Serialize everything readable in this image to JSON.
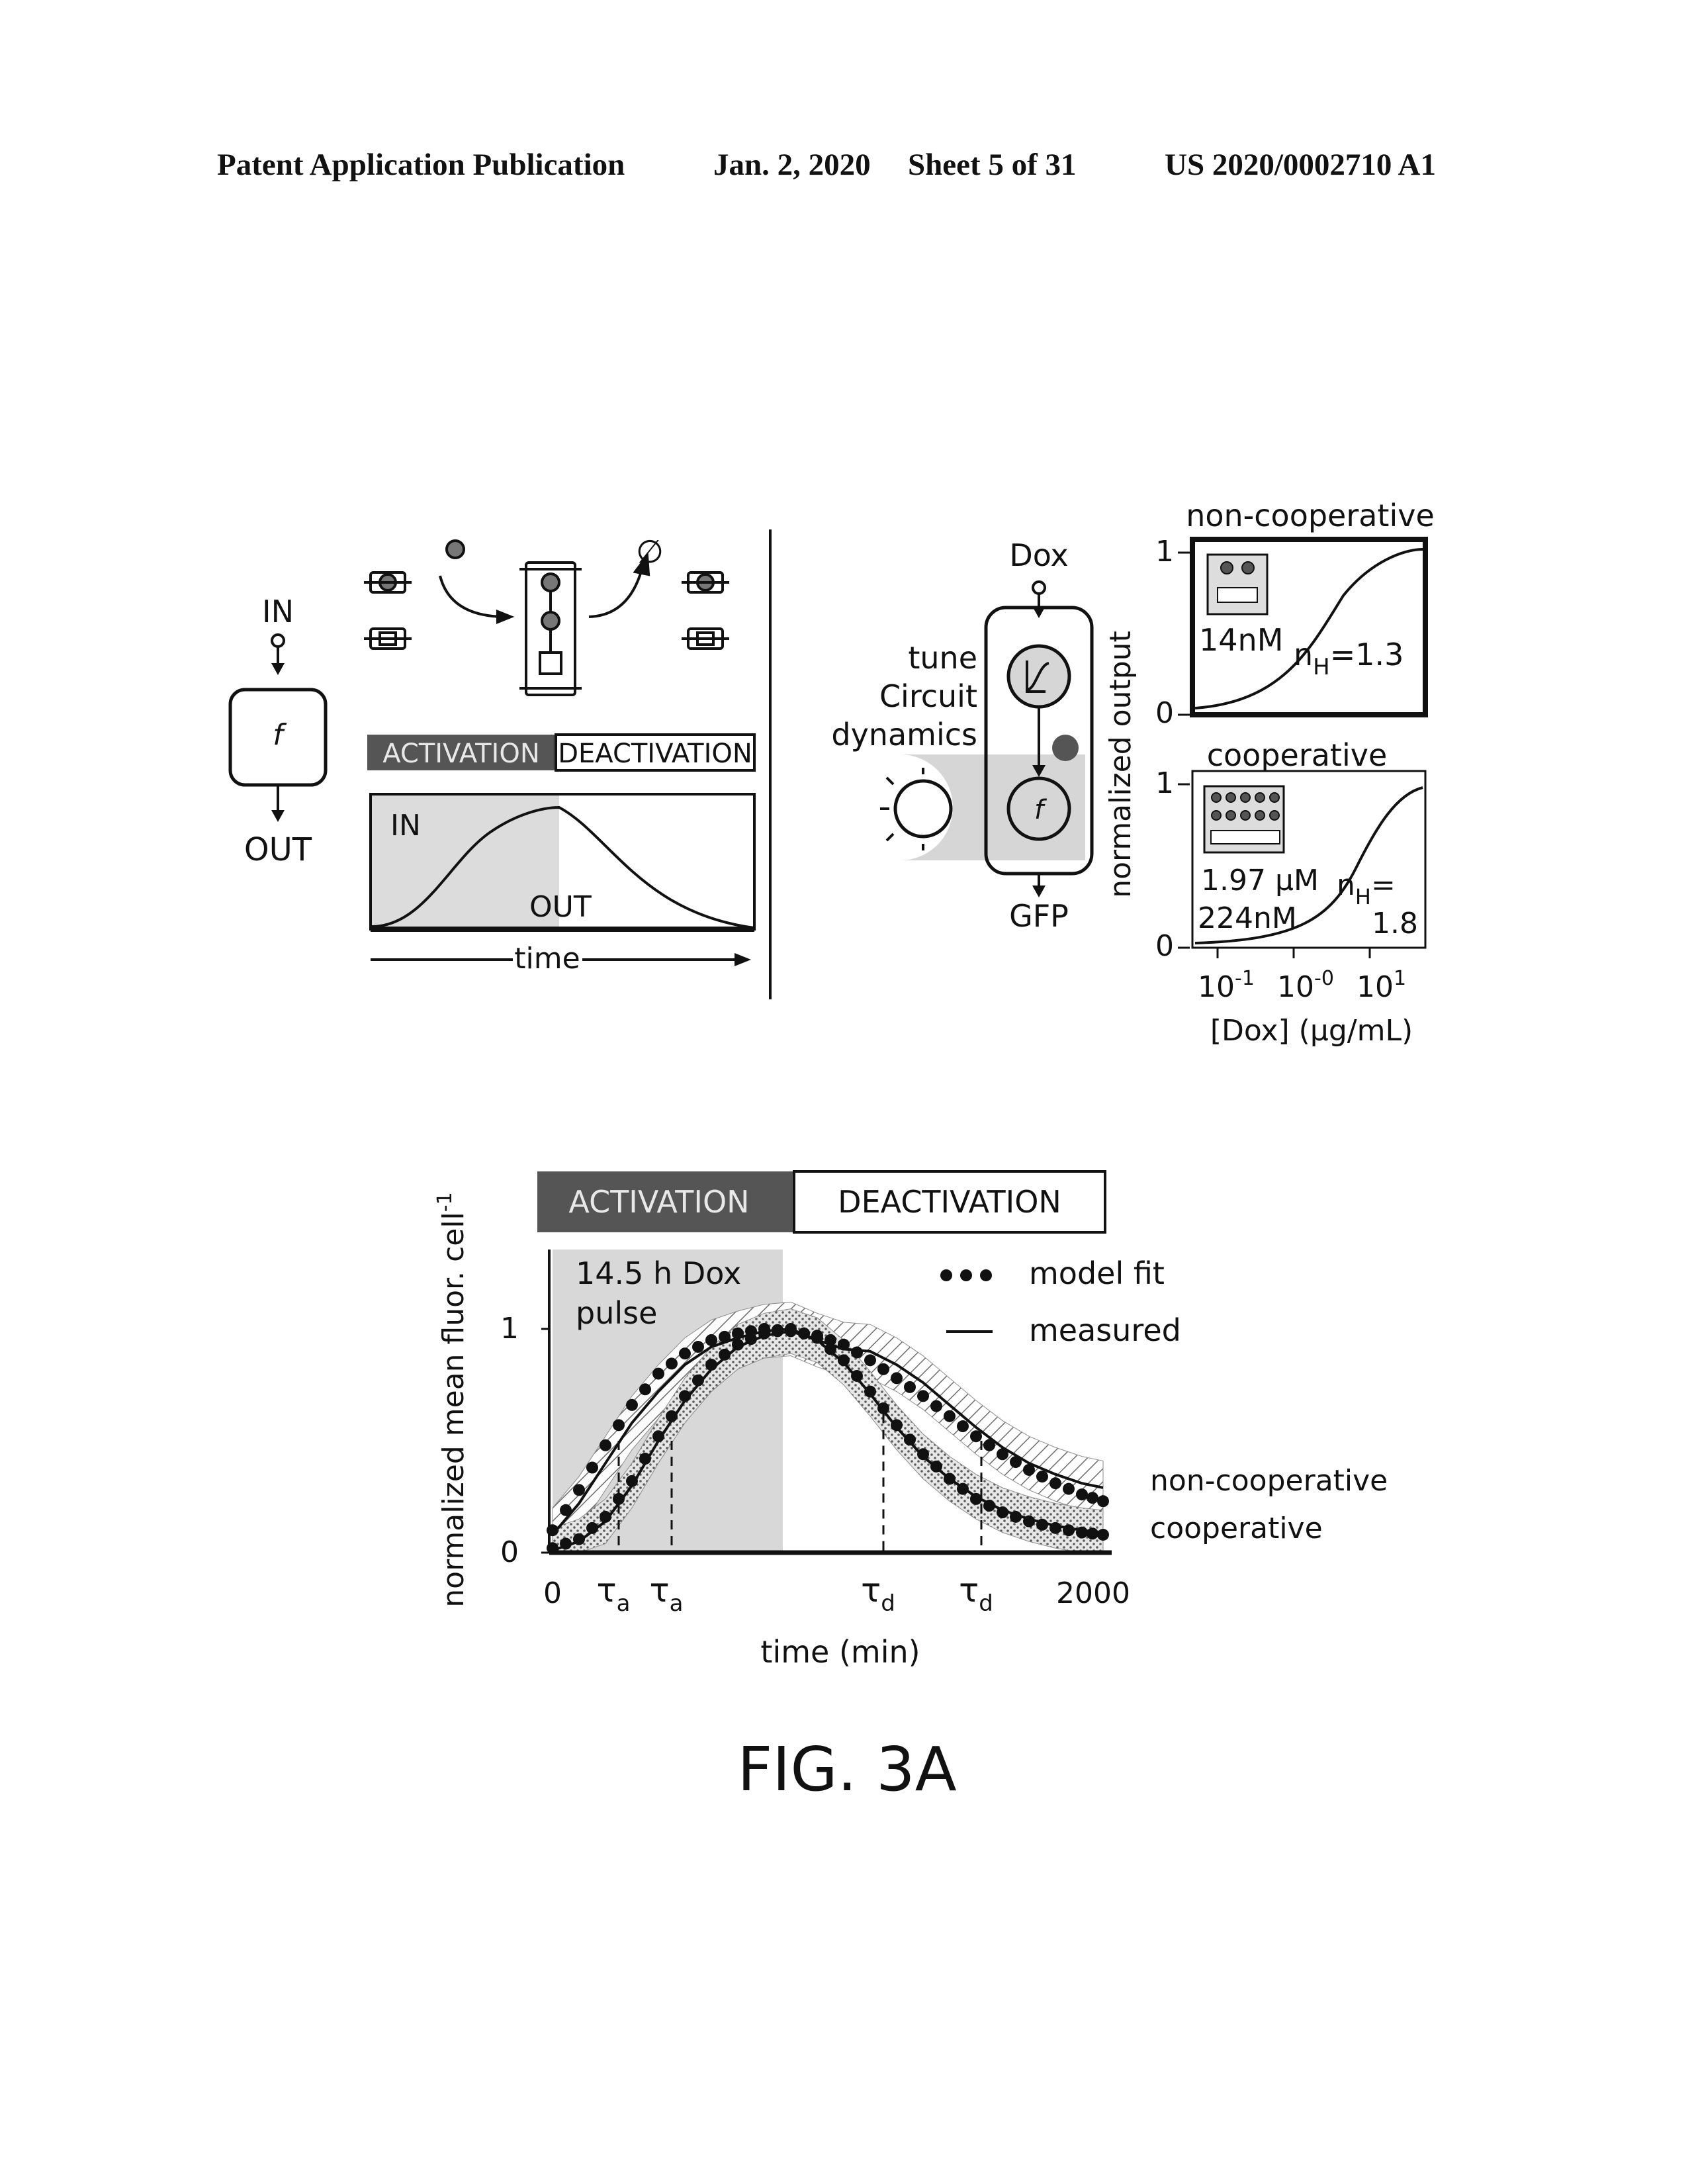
{
  "header": {
    "left": "Patent Application Publication",
    "date": "Jan. 2, 2020",
    "sheet": "Sheet 5 of 31",
    "number": "US 2020/0002710 A1"
  },
  "panel_a": {
    "in_label": "IN",
    "out_label": "OUT",
    "f_label": "f",
    "activation": "ACTIVATION",
    "deactivation": "DEACTIVATION",
    "curve_in": "IN",
    "curve_out": "OUT",
    "time": "time",
    "degrade_symbol": "∅"
  },
  "panel_b": {
    "dox": "Dox",
    "gfp": "GFP",
    "f_label": "f",
    "tune_lines": [
      "tune",
      "Circuit",
      "dynamics"
    ],
    "ylabel": "normalized output",
    "xlabel": "[Dox] (µg/mL)",
    "xticks": [
      {
        "base": "10",
        "exp": "-1"
      },
      {
        "base": "10",
        "exp": "-0"
      },
      {
        "base": "10",
        "exp": "1"
      }
    ],
    "top": {
      "title": "non-cooperative",
      "conc": "14nM",
      "nh_prefix": "n",
      "nh_sub": "H",
      "nh_value": "=1.3",
      "y_hi": "1",
      "y_lo": "0"
    },
    "bottom": {
      "title": "cooperative",
      "conc1": "1.97 µM",
      "conc2": "224nM",
      "nh_prefix": "n",
      "nh_sub": "H",
      "nh_value": "=",
      "nh_value2": "1.8",
      "y_hi": "1",
      "y_lo": "0"
    }
  },
  "panel_c": {
    "activation": "ACTIVATION",
    "deactivation": "DEACTIVATION",
    "pulse_line1": "14.5 h Dox",
    "pulse_line2": "pulse",
    "legend_fit": "model fit",
    "legend_measured": "measured",
    "label_noncoop": "non-cooperative",
    "label_coop": "cooperative",
    "ylabel": "normalized mean fluor. cell",
    "ylabel_sup": "-1",
    "xlabel": "time (min)",
    "x0": "0",
    "x_end": "2000",
    "y1": "1",
    "y0": "0",
    "tau": "τ",
    "sub_a": "a",
    "sub_d": "d"
  },
  "chart_data": {
    "type": "line",
    "title": "",
    "xlabel": "time (min)",
    "ylabel": "normalized mean fluor. cell-1",
    "xlim": [
      0,
      2100
    ],
    "ylim": [
      0,
      1.3
    ],
    "activation_window": [
      0,
      870
    ],
    "series": [
      {
        "name": "non-cooperative",
        "x": [
          0,
          100,
          200,
          300,
          400,
          500,
          600,
          700,
          800,
          900,
          1000,
          1100,
          1200,
          1300,
          1400,
          1500,
          1600,
          1700,
          1800,
          1900,
          2000,
          2080
        ],
        "y_fit": [
          0.1,
          0.28,
          0.48,
          0.66,
          0.8,
          0.89,
          0.95,
          0.98,
          1.0,
          0.99,
          0.97,
          0.93,
          0.86,
          0.78,
          0.7,
          0.61,
          0.52,
          0.44,
          0.37,
          0.31,
          0.26,
          0.23
        ],
        "y_measured": [
          0.08,
          0.22,
          0.4,
          0.58,
          0.72,
          0.84,
          0.92,
          0.96,
          0.99,
          1.0,
          0.95,
          0.91,
          0.9,
          0.84,
          0.76,
          0.66,
          0.56,
          0.47,
          0.4,
          0.35,
          0.31,
          0.29
        ]
      },
      {
        "name": "cooperative",
        "x": [
          0,
          100,
          200,
          300,
          400,
          500,
          600,
          700,
          800,
          900,
          1000,
          1100,
          1200,
          1300,
          1400,
          1500,
          1600,
          1700,
          1800,
          1900,
          2000,
          2080
        ],
        "y_fit": [
          0.02,
          0.06,
          0.16,
          0.32,
          0.52,
          0.7,
          0.84,
          0.93,
          0.98,
          1.0,
          0.96,
          0.86,
          0.72,
          0.57,
          0.44,
          0.33,
          0.24,
          0.18,
          0.14,
          0.11,
          0.09,
          0.08
        ],
        "y_measured": [
          0.01,
          0.05,
          0.14,
          0.3,
          0.5,
          0.68,
          0.82,
          0.92,
          0.97,
          0.99,
          0.95,
          0.85,
          0.71,
          0.56,
          0.43,
          0.33,
          0.25,
          0.19,
          0.15,
          0.12,
          0.1,
          0.09
        ]
      }
    ],
    "markers": {
      "tau_a": [
        250,
        450
      ],
      "tau_d": [
        1250,
        1620
      ]
    }
  },
  "caption": "FIG. 3A"
}
